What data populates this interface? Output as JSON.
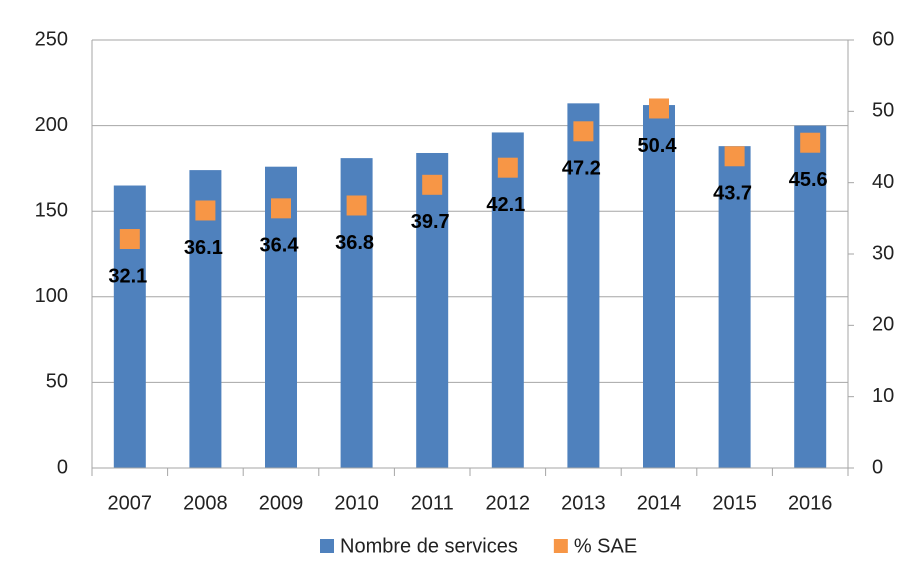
{
  "chart_data": {
    "type": "bar",
    "categories": [
      "2007",
      "2008",
      "2009",
      "2010",
      "2011",
      "2012",
      "2013",
      "2014",
      "2015",
      "2016"
    ],
    "series": [
      {
        "name": "Nombre de services",
        "color": "#4f81bd",
        "type": "bar",
        "values": [
          165,
          174,
          176,
          181,
          184,
          196,
          213,
          212,
          188,
          200
        ]
      },
      {
        "name": "% SAE",
        "color": "#f79646",
        "type": "scatter",
        "axis": "y2",
        "values": [
          32.1,
          36.1,
          36.4,
          36.8,
          39.7,
          42.1,
          47.2,
          50.4,
          43.7,
          45.6
        ]
      }
    ],
    "ylim": [
      0,
      250
    ],
    "yticks": [
      0,
      50,
      100,
      150,
      200,
      250
    ],
    "y2lim": [
      0,
      60
    ],
    "y2ticks": [
      0,
      10,
      20,
      30,
      40,
      50,
      60
    ],
    "grid": true,
    "legend": "bottom"
  }
}
